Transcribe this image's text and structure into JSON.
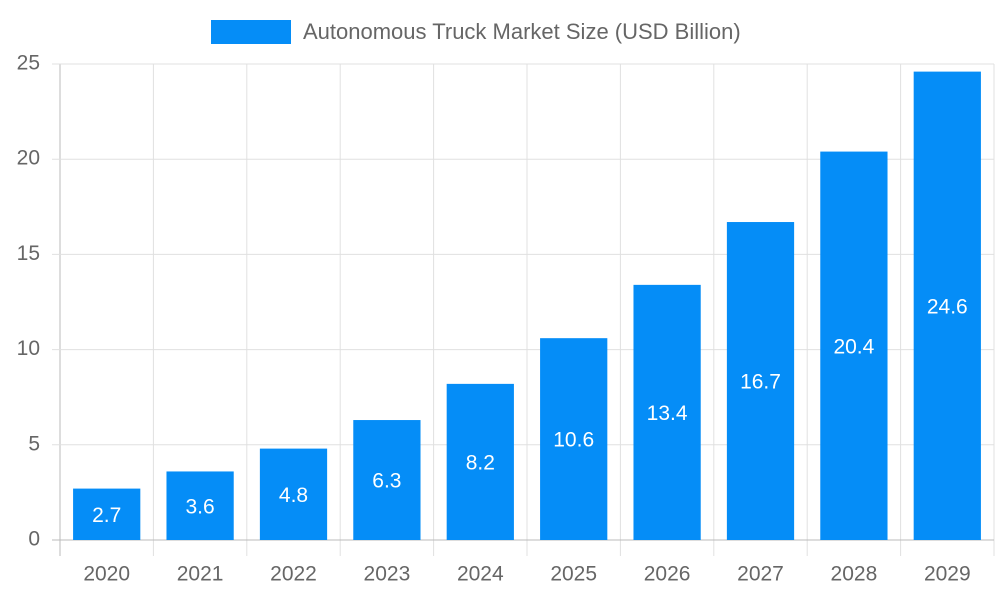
{
  "chart_data": {
    "type": "bar",
    "categories": [
      "2020",
      "2021",
      "2022",
      "2023",
      "2024",
      "2025",
      "2026",
      "2027",
      "2028",
      "2029"
    ],
    "series": [
      {
        "name": "Autonomous Truck Market Size (USD Billion)",
        "color": "#058DF7",
        "values": [
          2.7,
          3.6,
          4.8,
          6.3,
          8.2,
          10.6,
          13.4,
          16.7,
          20.4,
          24.6
        ]
      }
    ],
    "ylim": [
      0,
      25
    ],
    "yticks": [
      0,
      5,
      10,
      15,
      20,
      25
    ],
    "grid": true,
    "legend": "top"
  }
}
